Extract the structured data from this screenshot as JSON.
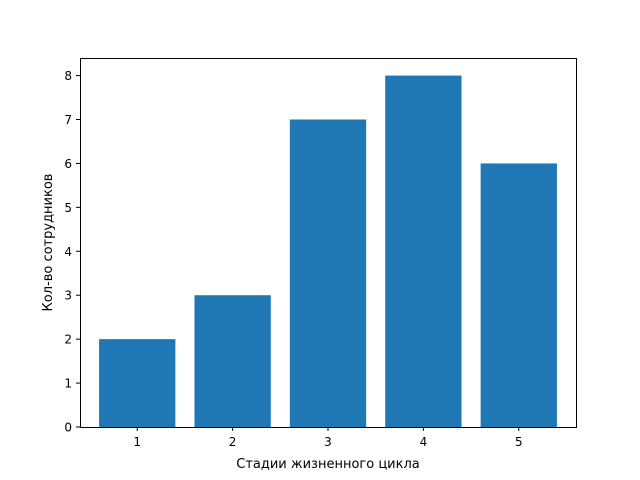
{
  "chart_data": {
    "type": "bar",
    "title": "",
    "categories": [
      "1",
      "2",
      "3",
      "4",
      "5"
    ],
    "values": [
      2,
      3,
      7,
      8,
      6
    ],
    "xlabel": "Стадии жизненного цикла",
    "ylabel": "Кол-во сотрудников",
    "ylim": [
      0,
      8.4
    ],
    "yticks": [
      0,
      1,
      2,
      3,
      4,
      5,
      6,
      7,
      8
    ],
    "grid": false,
    "legend": "none",
    "bar_color": "#1f77b4"
  }
}
